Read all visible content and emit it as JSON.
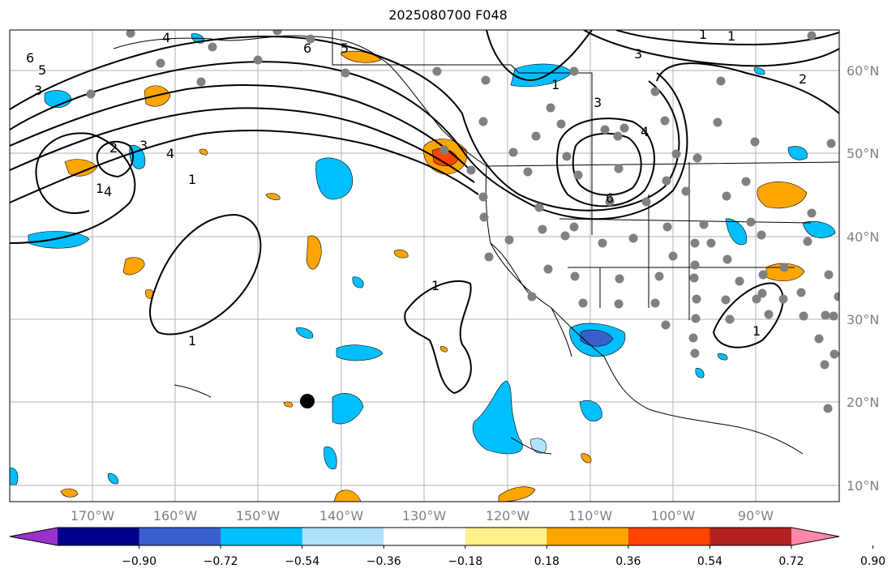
{
  "title": "2025080700 F048",
  "map": {
    "lon_labels": [
      "170°W",
      "160°W",
      "150°W",
      "140°W",
      "130°W",
      "120°W",
      "110°W",
      "100°W",
      "90°W"
    ],
    "lat_labels": [
      "60°N",
      "50°N",
      "40°N",
      "30°N",
      "20°N",
      "10°N"
    ],
    "contour_labels": [
      "6",
      "5",
      "3",
      "5",
      "6",
      "4",
      "3",
      "1",
      "2",
      "3",
      "4",
      "6",
      "1",
      "2",
      "3",
      "4",
      "1",
      "1",
      "1",
      "1",
      "1",
      "1",
      "4"
    ],
    "marker": "current-position"
  },
  "colorbar": {
    "levels": [
      "−0.90",
      "−0.72",
      "−0.54",
      "−0.36",
      "−0.18",
      "0.18",
      "0.36",
      "0.54",
      "0.72",
      "0.90"
    ],
    "colors": [
      "#9932cc",
      "#00008b",
      "#3a5fcd",
      "#00bfff",
      "#b0e2ff",
      "#ffffff",
      "#fff08c",
      "#ffa500",
      "#ff4500",
      "#b22222",
      "#ff88aa"
    ]
  }
}
